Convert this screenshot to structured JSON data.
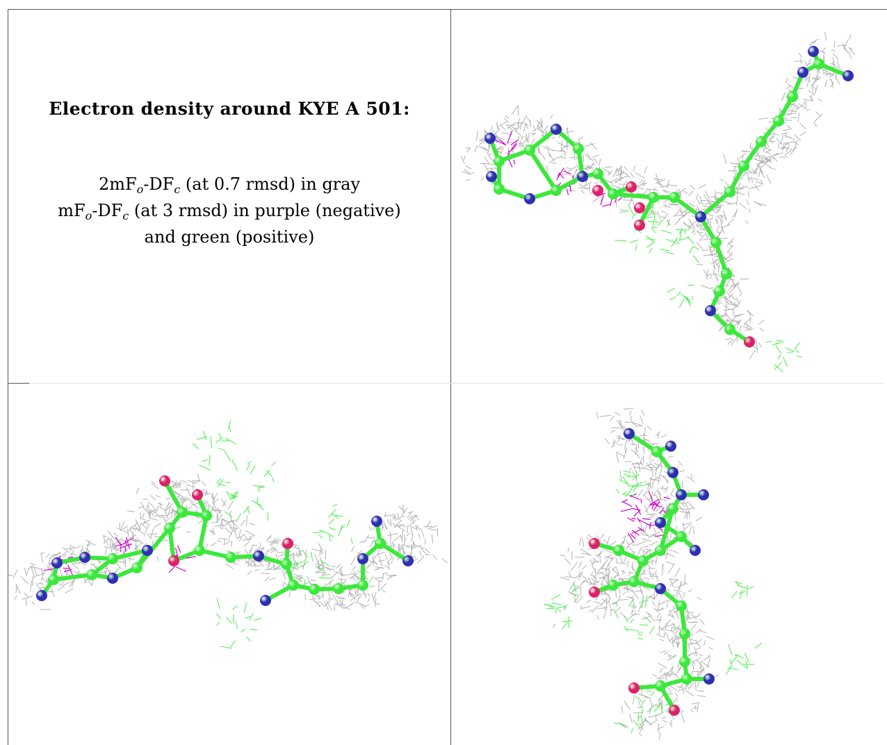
{
  "figure": {
    "title": "Electron density around KYE A 501:",
    "legend_lines": [
      {
        "parts": [
          {
            "t": "2mF"
          },
          {
            "sub": "o"
          },
          {
            "t": "-DF"
          },
          {
            "sub": "c"
          },
          {
            "t": " (at 0.7 rmsd) in gray"
          }
        ]
      },
      {
        "parts": [
          {
            "t": "mF"
          },
          {
            "sub": "o"
          },
          {
            "t": "-DF"
          },
          {
            "sub": "c"
          },
          {
            "t": " (at 3 rmsd) in purple (negative)"
          }
        ]
      },
      {
        "parts": [
          {
            "t": "and green (positive)"
          }
        ]
      }
    ]
  },
  "colors": {
    "mesh_2fofc": "#a8a8a8",
    "mesh_negative": "#d000d0",
    "mesh_positive": "#44ee44",
    "carbon": "#3be83b",
    "nitrogen": "#2f2fb4",
    "oxygen": "#e0206a"
  },
  "panels": [
    {
      "name": "view-top-right"
    },
    {
      "name": "view-bottom-left"
    },
    {
      "name": "view-bottom-right"
    }
  ]
}
